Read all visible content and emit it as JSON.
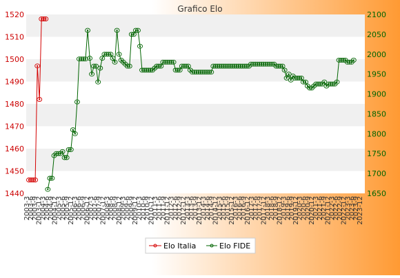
{
  "colors": {
    "background_left": "#ffffff",
    "background_right": "#ff9a33",
    "italy": "#d40000",
    "fide": "#006400",
    "left_axis_text": "#cc0000",
    "right_axis_text": "#006400",
    "band": "#f0f0f0"
  },
  "chart_data": {
    "type": "line",
    "title": "Grafico Elo",
    "grid": true,
    "legend_position": "bottom",
    "y_left": {
      "range": [
        1440,
        1520
      ],
      "ticks": [
        1440,
        1450,
        1460,
        1470,
        1480,
        1490,
        1500,
        1510,
        1520
      ],
      "series": "Elo Italia"
    },
    "y_right": {
      "range": [
        1650,
        2100
      ],
      "ticks": [
        1650,
        1700,
        1750,
        1800,
        1850,
        1900,
        1950,
        2000,
        2050,
        2100
      ],
      "series": "Elo FIDE"
    },
    "x_tick_labels": [
      "2003-3",
      "2003-6",
      "2003-9",
      "2003-12",
      "2004-3",
      "2004-6",
      "2004-9",
      "2004-12",
      "2005-3",
      "2005-6",
      "2005-9",
      "2005-12",
      "2006-3",
      "2006-6",
      "2006-9",
      "2006-12",
      "2007-3",
      "2007-6",
      "2007-9",
      "2007-12",
      "2008-3",
      "2008-6",
      "2008-9",
      "2008-12",
      "2009-3",
      "2009-6",
      "2009-9",
      "2009-12",
      "2010-3",
      "2010-6",
      "2010-9",
      "2010-12",
      "2011-3",
      "2011-6",
      "2011-9",
      "2011-12",
      "2012-3",
      "2012-6",
      "2012-9",
      "2012-12",
      "2013-3",
      "2013-6",
      "2013-9",
      "2013-12",
      "2014-3",
      "2014-6",
      "2014-9",
      "2014-12",
      "2015-3",
      "2015-6",
      "2015-9",
      "2015-12",
      "2016-3",
      "2016-6",
      "2016-9",
      "2016-12",
      "2017-3",
      "2017-6",
      "2017-9",
      "2017-12",
      "2018-3",
      "2018-6",
      "2018-9",
      "2018-12",
      "2019-3",
      "2019-6",
      "2019-9",
      "2019-12",
      "2020-3",
      "2020-6",
      "2020-9",
      "2020-12",
      "2021-3",
      "2021-6",
      "2021-9",
      "2021-12",
      "2022-3",
      "2022-6",
      "2022-9",
      "2022-12",
      "2023-3",
      "2023-6",
      "2023-9",
      "2023-12"
    ],
    "series": [
      {
        "name": "Elo Italia",
        "axis": "left",
        "values": [
          1446,
          1446,
          1446,
          1446,
          1497,
          1482,
          1518,
          1518,
          1518
        ]
      },
      {
        "name": "Elo FIDE",
        "axis": "right",
        "start_index": 9,
        "values": [
          1660,
          1688,
          1688,
          1745,
          1750,
          1750,
          1750,
          1755,
          1740,
          1740,
          1760,
          1760,
          1810,
          1800,
          1880,
          1988,
          1988,
          1988,
          1988,
          2060,
          1990,
          1950,
          1970,
          1970,
          1930,
          1965,
          1990,
          2000,
          2000,
          2000,
          2000,
          1990,
          1980,
          2060,
          2000,
          1985,
          1980,
          1975,
          1970,
          1970,
          2050,
          2050,
          2060,
          2060,
          2020,
          1960,
          1960,
          1960,
          1960,
          1960,
          1960,
          1965,
          1970,
          1970,
          1970,
          1980,
          1980,
          1980,
          1980,
          1980,
          1980,
          1960,
          1960,
          1960,
          1970,
          1970,
          1970,
          1970,
          1960,
          1955,
          1955,
          1955,
          1955,
          1955,
          1955,
          1955,
          1955,
          1955,
          1955,
          1970,
          1970,
          1970,
          1970,
          1970,
          1970,
          1970,
          1970,
          1970,
          1970,
          1970,
          1970,
          1970,
          1970,
          1970,
          1970,
          1970,
          1970,
          1975,
          1975,
          1975,
          1975,
          1975,
          1975,
          1975,
          1975,
          1975,
          1975,
          1975,
          1975,
          1970,
          1970,
          1970,
          1970,
          1960,
          1940,
          1950,
          1935,
          1945,
          1940,
          1940,
          1940,
          1940,
          1930,
          1930,
          1920,
          1915,
          1915,
          1920,
          1925,
          1925,
          1925,
          1925,
          1930,
          1920,
          1925,
          1925,
          1925,
          1925,
          1930,
          1985,
          1985,
          1985,
          1985,
          1980,
          1980,
          1980,
          1985
        ]
      }
    ]
  }
}
